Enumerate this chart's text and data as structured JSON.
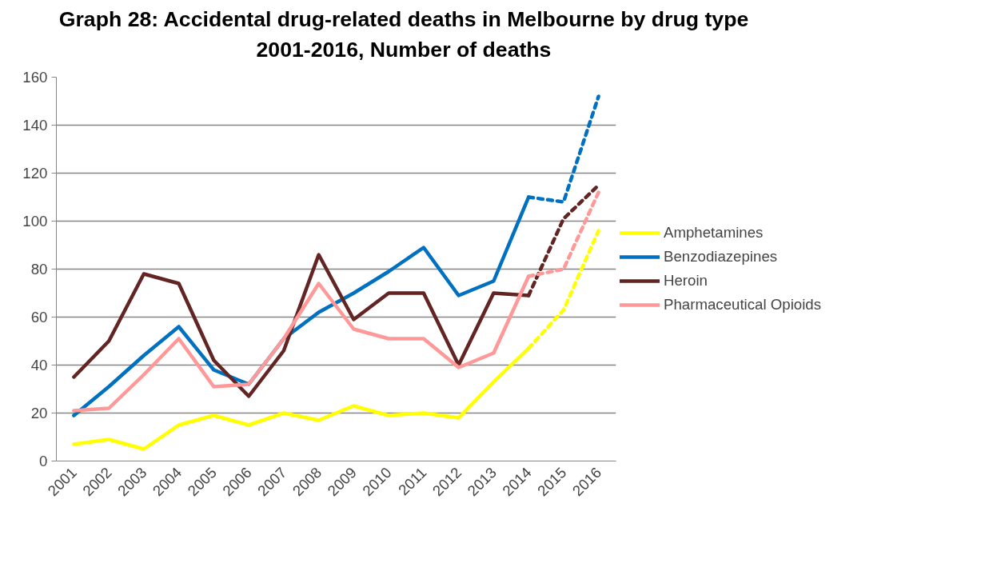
{
  "chart_data": {
    "type": "line",
    "title": "Graph 28: Accidental drug-related deaths in Melbourne by drug type\n2001-2016, Number of deaths",
    "categories": [
      "2001",
      "2002",
      "2003",
      "2004",
      "2005",
      "2006",
      "2007",
      "2008",
      "2009",
      "2010",
      "2011",
      "2012",
      "2013",
      "2014",
      "2015",
      "2016"
    ],
    "series": [
      {
        "name": "Amphetamines",
        "color": "#ffff00",
        "line_style": "solid",
        "values": [
          7,
          9,
          5,
          15,
          19,
          15,
          20,
          17,
          23,
          19,
          20,
          18,
          33,
          47,
          null,
          null
        ]
      },
      {
        "name": "Benzodiazepines",
        "color": "#0070c0",
        "line_style": "solid",
        "values": [
          19,
          31,
          44,
          56,
          38,
          32,
          51,
          62,
          70,
          79,
          89,
          69,
          75,
          110,
          null,
          null
        ]
      },
      {
        "name": "Heroin",
        "color": "#632523",
        "line_style": "solid",
        "values": [
          35,
          50,
          78,
          74,
          42,
          27,
          46,
          86,
          59,
          70,
          70,
          40,
          70,
          69,
          null,
          null
        ]
      },
      {
        "name": "Pharmaceutical Opioids",
        "color": "#ff9999",
        "line_style": "solid",
        "values": [
          21,
          22,
          36,
          51,
          31,
          32,
          51,
          74,
          55,
          51,
          51,
          39,
          45,
          77,
          null,
          null
        ]
      },
      {
        "color": "#ffff00",
        "line_style": "dashed",
        "values": [
          null,
          null,
          null,
          null,
          null,
          null,
          null,
          null,
          null,
          null,
          null,
          null,
          null,
          47,
          63,
          96
        ]
      },
      {
        "color": "#0070c0",
        "line_style": "dashed",
        "values": [
          null,
          null,
          null,
          null,
          null,
          null,
          null,
          null,
          null,
          null,
          null,
          null,
          null,
          110,
          108,
          152
        ]
      },
      {
        "color": "#632523",
        "line_style": "dashed",
        "values": [
          null,
          null,
          null,
          null,
          null,
          null,
          null,
          null,
          null,
          null,
          null,
          null,
          null,
          69,
          101,
          115
        ]
      },
      {
        "color": "#ff9999",
        "line_style": "dashed",
        "values": [
          null,
          null,
          null,
          null,
          null,
          null,
          null,
          null,
          null,
          null,
          null,
          null,
          null,
          77,
          80,
          112
        ]
      }
    ],
    "ylim": [
      0,
      160
    ],
    "yticks": [
      0,
      20,
      40,
      60,
      80,
      100,
      120,
      140,
      160
    ],
    "grid": "y",
    "legend": "right",
    "marker": "none"
  }
}
